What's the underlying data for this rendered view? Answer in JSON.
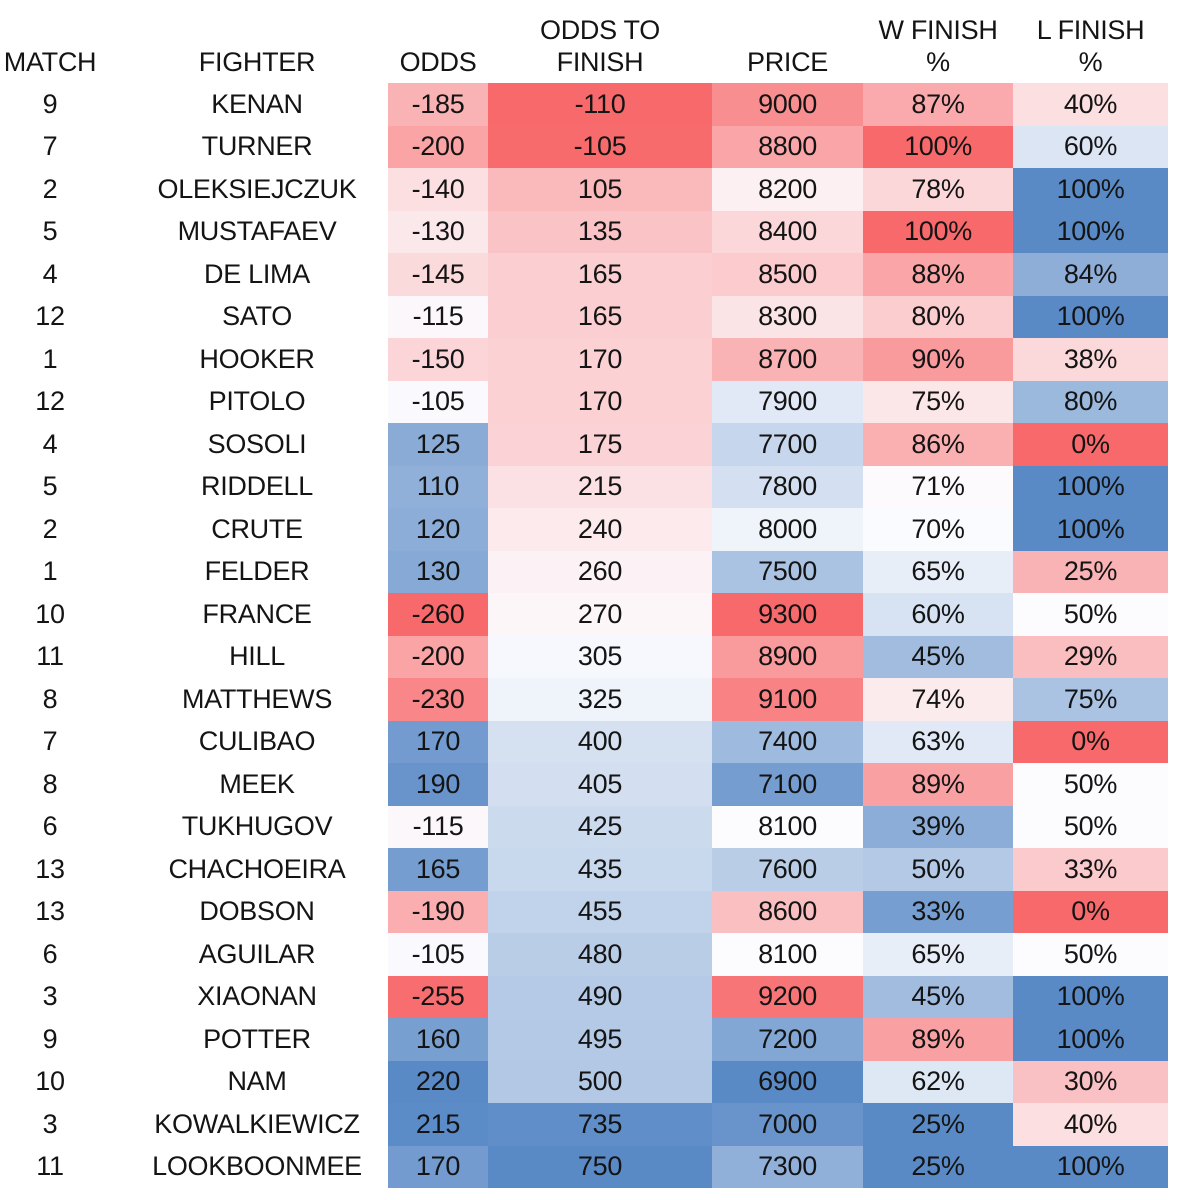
{
  "table": {
    "headers": [
      {
        "id": "match",
        "lines": [
          "MATCH"
        ]
      },
      {
        "id": "fighter",
        "lines": [
          "FIGHTER"
        ]
      },
      {
        "id": "odds",
        "lines": [
          "ODDS"
        ]
      },
      {
        "id": "odds_to_finish",
        "lines": [
          "ODDS TO",
          "FINISH"
        ]
      },
      {
        "id": "price",
        "lines": [
          "PRICE"
        ]
      },
      {
        "id": "w_finish",
        "lines": [
          "W FINISH",
          "%"
        ]
      },
      {
        "id": "l_finish",
        "lines": [
          "L FINISH",
          "%"
        ]
      }
    ]
  },
  "chart_data": {
    "type": "table",
    "columns": [
      "MATCH",
      "FIGHTER",
      "ODDS",
      "ODDS TO FINISH",
      "PRICE",
      "W FINISH %",
      "L FINISH %"
    ],
    "rows": [
      {
        "match": "9",
        "fighter": "KENAN",
        "odds": "-185",
        "odds_to_finish": "-110",
        "price": "9000",
        "w_finish": "87%",
        "l_finish": "40%"
      },
      {
        "match": "7",
        "fighter": "TURNER",
        "odds": "-200",
        "odds_to_finish": "-105",
        "price": "8800",
        "w_finish": "100%",
        "l_finish": "60%"
      },
      {
        "match": "2",
        "fighter": "OLEKSIEJCZUK",
        "odds": "-140",
        "odds_to_finish": "105",
        "price": "8200",
        "w_finish": "78%",
        "l_finish": "100%"
      },
      {
        "match": "5",
        "fighter": "MUSTAFAEV",
        "odds": "-130",
        "odds_to_finish": "135",
        "price": "8400",
        "w_finish": "100%",
        "l_finish": "100%"
      },
      {
        "match": "4",
        "fighter": "DE LIMA",
        "odds": "-145",
        "odds_to_finish": "165",
        "price": "8500",
        "w_finish": "88%",
        "l_finish": "84%"
      },
      {
        "match": "12",
        "fighter": "SATO",
        "odds": "-115",
        "odds_to_finish": "165",
        "price": "8300",
        "w_finish": "80%",
        "l_finish": "100%"
      },
      {
        "match": "1",
        "fighter": "HOOKER",
        "odds": "-150",
        "odds_to_finish": "170",
        "price": "8700",
        "w_finish": "90%",
        "l_finish": "38%"
      },
      {
        "match": "12",
        "fighter": "PITOLO",
        "odds": "-105",
        "odds_to_finish": "170",
        "price": "7900",
        "w_finish": "75%",
        "l_finish": "80%"
      },
      {
        "match": "4",
        "fighter": "SOSOLI",
        "odds": "125",
        "odds_to_finish": "175",
        "price": "7700",
        "w_finish": "86%",
        "l_finish": "0%"
      },
      {
        "match": "5",
        "fighter": "RIDDELL",
        "odds": "110",
        "odds_to_finish": "215",
        "price": "7800",
        "w_finish": "71%",
        "l_finish": "100%"
      },
      {
        "match": "2",
        "fighter": "CRUTE",
        "odds": "120",
        "odds_to_finish": "240",
        "price": "8000",
        "w_finish": "70%",
        "l_finish": "100%"
      },
      {
        "match": "1",
        "fighter": "FELDER",
        "odds": "130",
        "odds_to_finish": "260",
        "price": "7500",
        "w_finish": "65%",
        "l_finish": "25%"
      },
      {
        "match": "10",
        "fighter": "FRANCE",
        "odds": "-260",
        "odds_to_finish": "270",
        "price": "9300",
        "w_finish": "60%",
        "l_finish": "50%"
      },
      {
        "match": "11",
        "fighter": "HILL",
        "odds": "-200",
        "odds_to_finish": "305",
        "price": "8900",
        "w_finish": "45%",
        "l_finish": "29%"
      },
      {
        "match": "8",
        "fighter": "MATTHEWS",
        "odds": "-230",
        "odds_to_finish": "325",
        "price": "9100",
        "w_finish": "74%",
        "l_finish": "75%"
      },
      {
        "match": "7",
        "fighter": "CULIBAO",
        "odds": "170",
        "odds_to_finish": "400",
        "price": "7400",
        "w_finish": "63%",
        "l_finish": "0%"
      },
      {
        "match": "8",
        "fighter": "MEEK",
        "odds": "190",
        "odds_to_finish": "405",
        "price": "7100",
        "w_finish": "89%",
        "l_finish": "50%"
      },
      {
        "match": "6",
        "fighter": "TUKHUGOV",
        "odds": "-115",
        "odds_to_finish": "425",
        "price": "8100",
        "w_finish": "39%",
        "l_finish": "50%"
      },
      {
        "match": "13",
        "fighter": "CHACHOEIRA",
        "odds": "165",
        "odds_to_finish": "435",
        "price": "7600",
        "w_finish": "50%",
        "l_finish": "33%"
      },
      {
        "match": "13",
        "fighter": "DOBSON",
        "odds": "-190",
        "odds_to_finish": "455",
        "price": "8600",
        "w_finish": "33%",
        "l_finish": "0%"
      },
      {
        "match": "6",
        "fighter": "AGUILAR",
        "odds": "-105",
        "odds_to_finish": "480",
        "price": "8100",
        "w_finish": "65%",
        "l_finish": "50%"
      },
      {
        "match": "3",
        "fighter": "XIAONAN",
        "odds": "-255",
        "odds_to_finish": "490",
        "price": "9200",
        "w_finish": "45%",
        "l_finish": "100%"
      },
      {
        "match": "9",
        "fighter": "POTTER",
        "odds": "160",
        "odds_to_finish": "495",
        "price": "7200",
        "w_finish": "89%",
        "l_finish": "100%"
      },
      {
        "match": "10",
        "fighter": "NAM",
        "odds": "220",
        "odds_to_finish": "500",
        "price": "6900",
        "w_finish": "62%",
        "l_finish": "30%"
      },
      {
        "match": "3",
        "fighter": "KOWALKIEWICZ",
        "odds": "215",
        "odds_to_finish": "735",
        "price": "7000",
        "w_finish": "25%",
        "l_finish": "40%"
      },
      {
        "match": "11",
        "fighter": "LOOKBOONMEE",
        "odds": "170",
        "odds_to_finish": "750",
        "price": "7300",
        "w_finish": "25%",
        "l_finish": "100%"
      }
    ],
    "conditional_formatting": {
      "palette": {
        "red": "#F8696B",
        "white": "#FCFCFF",
        "blue": "#5A8AC6"
      },
      "midpoint": "50th-percentile",
      "columns": {
        "odds": "red_low",
        "odds_to_finish": "red_low",
        "price": "red_high",
        "w_finish": "red_high",
        "l_finish": "red_low"
      }
    },
    "title": "",
    "legend": "none",
    "grid": "off"
  }
}
